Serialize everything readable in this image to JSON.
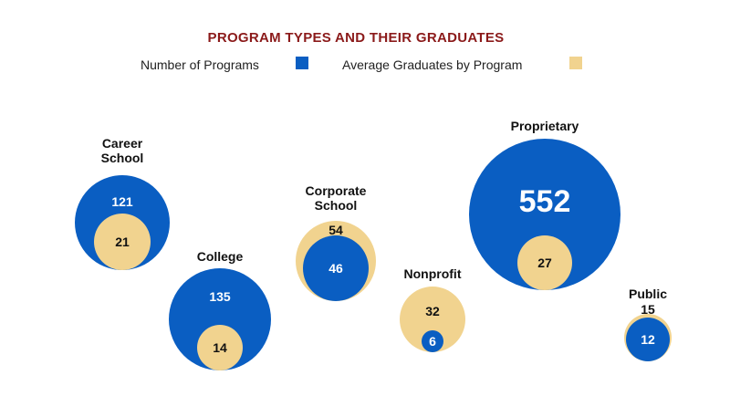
{
  "chart_data": {
    "type": "bubble",
    "title": "PROGRAM TYPES AND THEIR GRADUATES",
    "legend": {
      "placement": "top",
      "items": [
        {
          "name": "Number of Programs",
          "color": "#0a5ec2"
        },
        {
          "name": "Average Graduates by Program",
          "color": "#f1d38f"
        }
      ]
    },
    "categories": [
      {
        "label": [
          "Career",
          "School"
        ],
        "programs": 121,
        "avg_graduates": 21
      },
      {
        "label": [
          "College"
        ],
        "programs": 135,
        "avg_graduates": 14
      },
      {
        "label": [
          "Corporate",
          "School"
        ],
        "programs": 46,
        "avg_graduates": 54
      },
      {
        "label": [
          "Nonprofit"
        ],
        "programs": 6,
        "avg_graduates": 32
      },
      {
        "label": [
          "Proprietary"
        ],
        "programs": 552,
        "avg_graduates": 27
      },
      {
        "label": [
          "Public"
        ],
        "programs": 12,
        "avg_graduates": 15
      }
    ]
  }
}
